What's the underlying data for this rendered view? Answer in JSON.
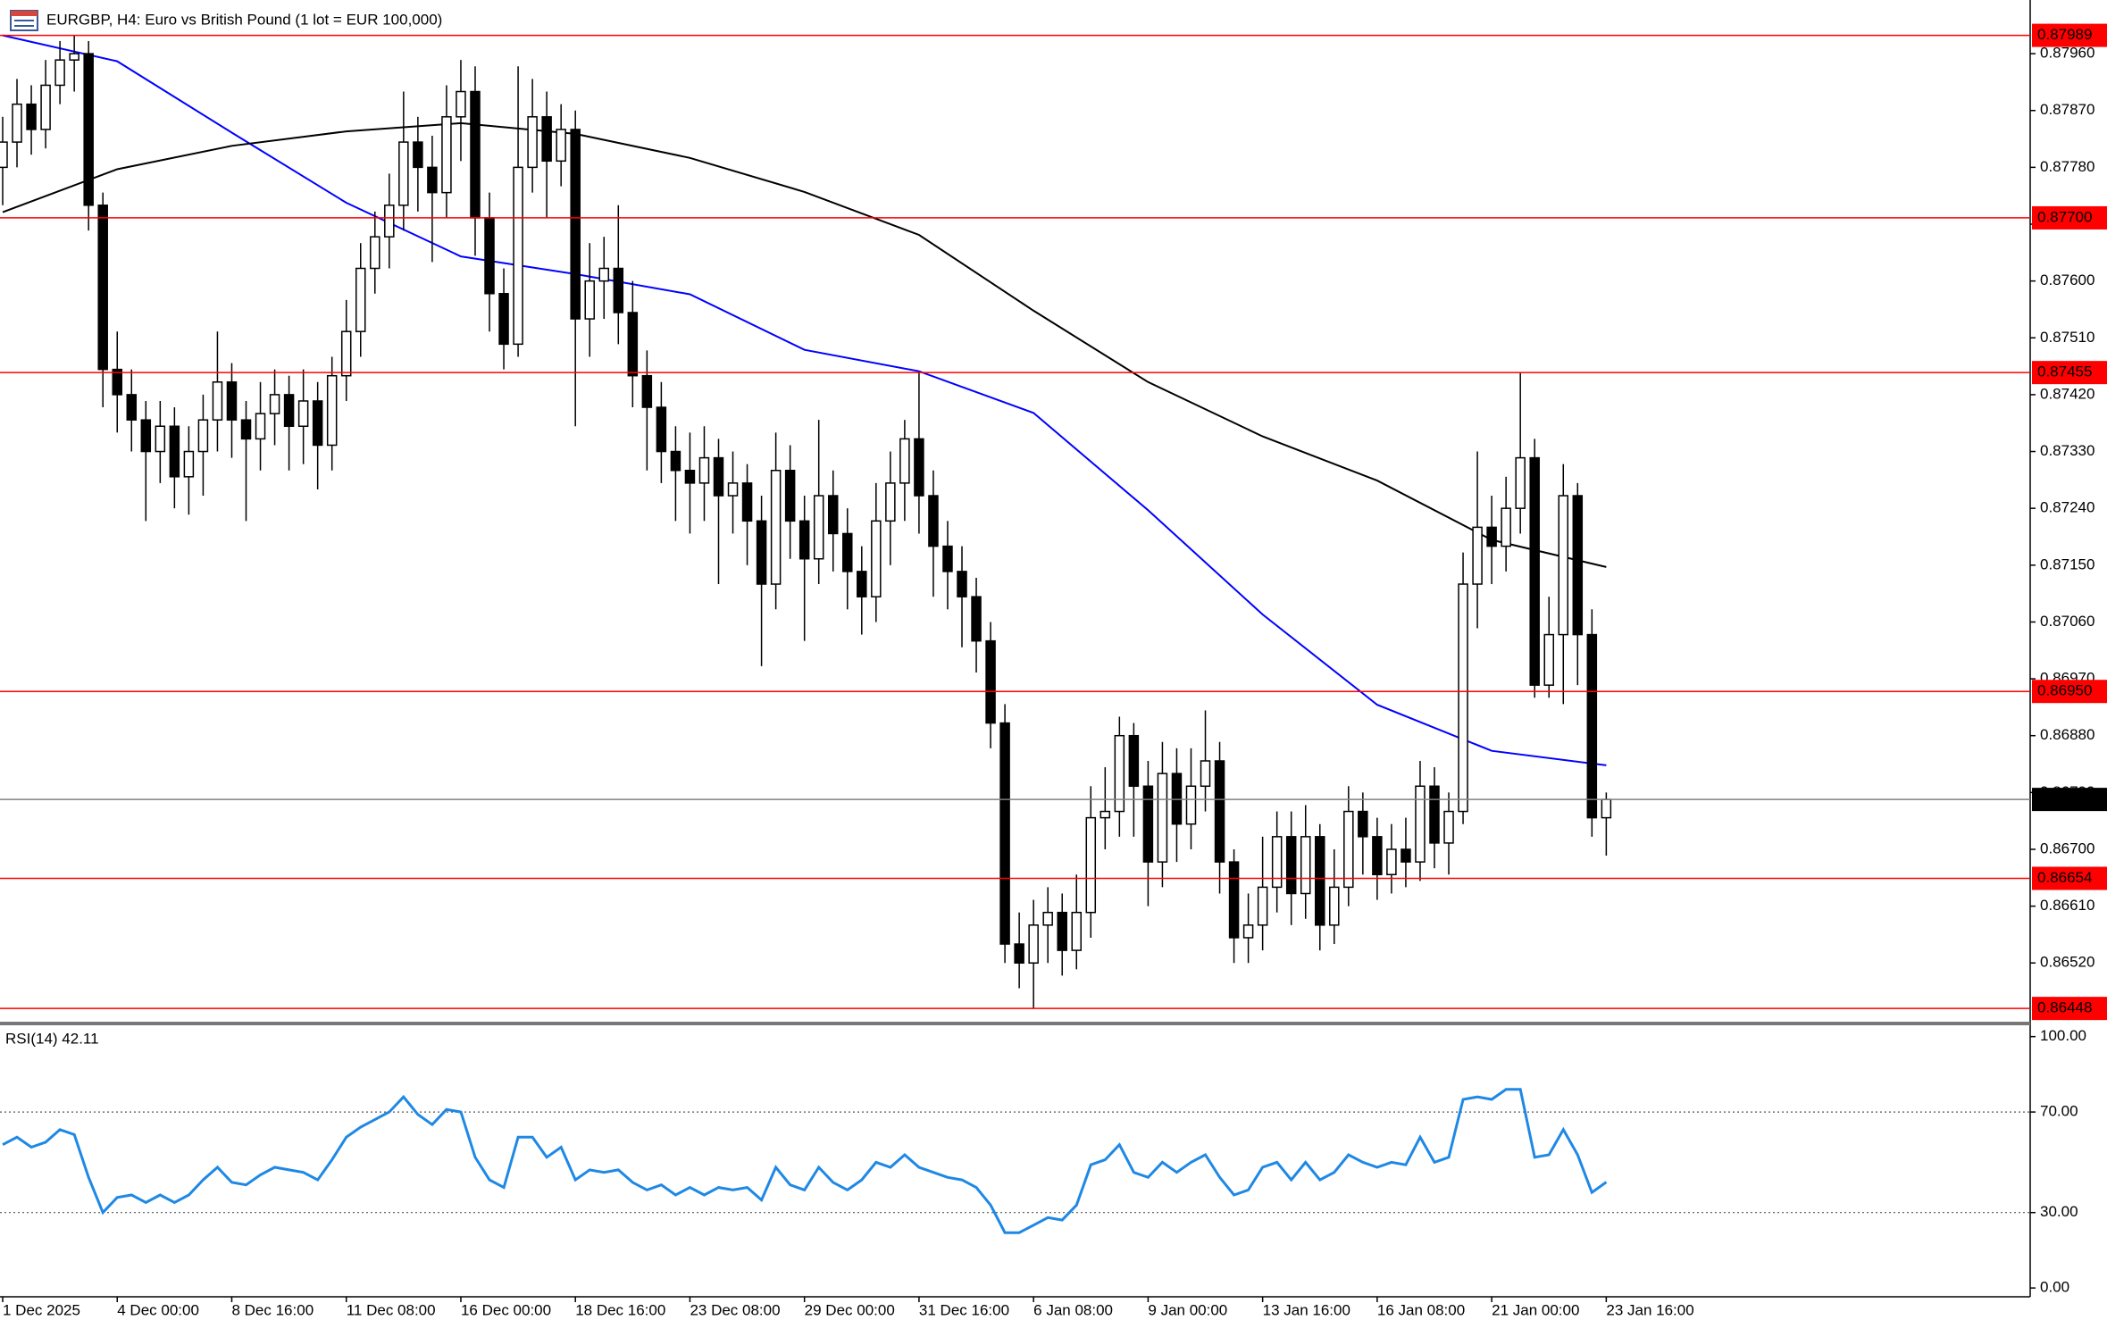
{
  "chart_data": [
    {
      "type": "candlestick",
      "title": "EURGBP, H4:  Euro vs British Pound (1 lot = EUR 100,000)",
      "categories": [
        "1 Dec 2025",
        null,
        null,
        null,
        null,
        null,
        null,
        null,
        "4 Dec 00:00",
        null,
        null,
        null,
        null,
        null,
        null,
        null,
        "8 Dec 16:00",
        null,
        null,
        null,
        null,
        null,
        null,
        null,
        "11 Dec 08:00",
        null,
        null,
        null,
        null,
        null,
        null,
        null,
        "16 Dec 00:00",
        null,
        null,
        null,
        null,
        null,
        null,
        null,
        "18 Dec 16:00",
        null,
        null,
        null,
        null,
        null,
        null,
        null,
        "23 Dec 08:00",
        null,
        null,
        null,
        null,
        null,
        null,
        null,
        "29 Dec 00:00",
        null,
        null,
        null,
        null,
        null,
        null,
        null,
        "31 Dec 16:00",
        null,
        null,
        null,
        null,
        null,
        null,
        null,
        "6 Jan 08:00",
        null,
        null,
        null,
        null,
        null,
        null,
        null,
        "9 Jan 00:00",
        null,
        null,
        null,
        null,
        null,
        null,
        null,
        "13 Jan 16:00",
        null,
        null,
        null,
        null,
        null,
        null,
        null,
        "16 Jan 08:00",
        null,
        null,
        null,
        null,
        null,
        null,
        null,
        "21 Jan 00:00",
        null,
        null,
        null,
        null,
        null,
        null,
        null,
        "23 Jan 16:00"
      ],
      "open": [
        0.8778,
        0.8782,
        0.8788,
        0.8784,
        0.8791,
        0.8795,
        0.8796,
        0.8772,
        0.8746,
        0.8742,
        0.8738,
        0.8733,
        0.8737,
        0.8729,
        0.8733,
        0.8738,
        0.8744,
        0.8738,
        0.8735,
        0.8739,
        0.8742,
        0.8737,
        0.8741,
        0.8734,
        0.8745,
        0.8752,
        0.8762,
        0.8767,
        0.8772,
        0.8782,
        0.8778,
        0.8774,
        0.8786,
        0.879,
        0.877,
        0.8758,
        0.875,
        0.8778,
        0.8786,
        0.8779,
        0.8784,
        0.8754,
        0.876,
        0.8762,
        0.8755,
        0.8745,
        0.874,
        0.8733,
        0.873,
        0.8728,
        0.8732,
        0.8726,
        0.8728,
        0.8722,
        0.8712,
        0.873,
        0.8722,
        0.8716,
        0.8726,
        0.872,
        0.8714,
        0.871,
        0.8722,
        0.8728,
        0.8735,
        0.8726,
        0.8718,
        0.8714,
        0.871,
        0.8703,
        0.869,
        0.8655,
        0.8652,
        0.8658,
        0.866,
        0.8654,
        0.866,
        0.8675,
        0.8676,
        0.8688,
        0.868,
        0.8668,
        0.8682,
        0.8674,
        0.868,
        0.8684,
        0.8668,
        0.8656,
        0.8658,
        0.8664,
        0.8672,
        0.8663,
        0.8672,
        0.8658,
        0.8664,
        0.8676,
        0.8672,
        0.8666,
        0.867,
        0.8668,
        0.868,
        0.8671,
        0.8676,
        0.8712,
        0.8721,
        0.8718,
        0.8724,
        0.8732,
        0.8696,
        0.8704,
        0.8726,
        0.8704,
        0.8675
      ],
      "high": [
        0.8786,
        0.8792,
        0.8791,
        0.8795,
        0.8798,
        0.87989,
        0.8798,
        0.8774,
        0.8752,
        0.8746,
        0.8741,
        0.8741,
        0.874,
        0.8737,
        0.8742,
        0.8752,
        0.8747,
        0.8741,
        0.8744,
        0.8746,
        0.8745,
        0.8746,
        0.8744,
        0.8748,
        0.8757,
        0.8766,
        0.8771,
        0.8777,
        0.879,
        0.8786,
        0.8783,
        0.8791,
        0.8795,
        0.8794,
        0.8774,
        0.8762,
        0.8794,
        0.8792,
        0.879,
        0.8788,
        0.8787,
        0.8766,
        0.8767,
        0.8772,
        0.876,
        0.8749,
        0.8744,
        0.8737,
        0.8736,
        0.8737,
        0.8735,
        0.8733,
        0.8731,
        0.8726,
        0.8736,
        0.8734,
        0.8726,
        0.8738,
        0.873,
        0.8724,
        0.8718,
        0.8728,
        0.8733,
        0.8738,
        0.87455,
        0.873,
        0.8722,
        0.8718,
        0.8713,
        0.8706,
        0.8693,
        0.866,
        0.8662,
        0.8664,
        0.8663,
        0.8666,
        0.868,
        0.8683,
        0.8691,
        0.869,
        0.8684,
        0.8687,
        0.8686,
        0.8686,
        0.8692,
        0.8687,
        0.867,
        0.8663,
        0.8672,
        0.8676,
        0.8676,
        0.8677,
        0.8674,
        0.867,
        0.868,
        0.8679,
        0.8675,
        0.8674,
        0.8675,
        0.8684,
        0.8683,
        0.8679,
        0.8717,
        0.8733,
        0.8726,
        0.8729,
        0.87455,
        0.8735,
        0.871,
        0.8731,
        0.8728,
        0.8708,
        0.8679
      ],
      "low": [
        0.8772,
        0.8778,
        0.878,
        0.8781,
        0.8788,
        0.879,
        0.8768,
        0.874,
        0.8736,
        0.8733,
        0.8722,
        0.8728,
        0.8724,
        0.8723,
        0.8726,
        0.8733,
        0.8732,
        0.8722,
        0.873,
        0.8734,
        0.873,
        0.8731,
        0.8727,
        0.873,
        0.8741,
        0.8748,
        0.8758,
        0.8762,
        0.8768,
        0.8771,
        0.8763,
        0.877,
        0.8779,
        0.8764,
        0.8752,
        0.8746,
        0.8748,
        0.8774,
        0.877,
        0.8775,
        0.8737,
        0.8748,
        0.8754,
        0.875,
        0.874,
        0.873,
        0.8728,
        0.8722,
        0.872,
        0.8722,
        0.8712,
        0.872,
        0.8715,
        0.8699,
        0.8708,
        0.8716,
        0.8703,
        0.8712,
        0.8714,
        0.8708,
        0.8704,
        0.8706,
        0.8715,
        0.8722,
        0.872,
        0.871,
        0.8708,
        0.8702,
        0.8698,
        0.8686,
        0.8652,
        0.8648,
        0.86448,
        0.8652,
        0.865,
        0.8651,
        0.8656,
        0.867,
        0.8672,
        0.8672,
        0.8661,
        0.8664,
        0.8668,
        0.867,
        0.8676,
        0.8663,
        0.8652,
        0.8652,
        0.8654,
        0.866,
        0.8658,
        0.8659,
        0.8654,
        0.8655,
        0.8661,
        0.8666,
        0.8662,
        0.8663,
        0.8664,
        0.8665,
        0.8667,
        0.8666,
        0.8674,
        0.8705,
        0.8712,
        0.8714,
        0.872,
        0.8694,
        0.8694,
        0.8693,
        0.8696,
        0.8672,
        0.8669
      ],
      "close": [
        0.8782,
        0.8788,
        0.8784,
        0.8791,
        0.8795,
        0.8796,
        0.8772,
        0.8746,
        0.8742,
        0.8738,
        0.8733,
        0.8737,
        0.8729,
        0.8733,
        0.8738,
        0.8744,
        0.8738,
        0.8735,
        0.8739,
        0.8742,
        0.8737,
        0.8741,
        0.8734,
        0.8745,
        0.8752,
        0.8762,
        0.8767,
        0.8772,
        0.8782,
        0.8778,
        0.8774,
        0.8786,
        0.879,
        0.877,
        0.8758,
        0.875,
        0.8778,
        0.8786,
        0.8779,
        0.8784,
        0.8754,
        0.876,
        0.8762,
        0.8755,
        0.8745,
        0.874,
        0.8733,
        0.873,
        0.8728,
        0.8732,
        0.8726,
        0.8728,
        0.8722,
        0.8712,
        0.873,
        0.8722,
        0.8716,
        0.8726,
        0.872,
        0.8714,
        0.871,
        0.8722,
        0.8728,
        0.8735,
        0.8726,
        0.8718,
        0.8714,
        0.871,
        0.8703,
        0.869,
        0.8655,
        0.8652,
        0.8658,
        0.866,
        0.8654,
        0.866,
        0.8675,
        0.8676,
        0.8688,
        0.868,
        0.8668,
        0.8682,
        0.8674,
        0.868,
        0.8684,
        0.8668,
        0.8656,
        0.8658,
        0.8664,
        0.8672,
        0.8663,
        0.8672,
        0.8658,
        0.8664,
        0.8676,
        0.8672,
        0.8666,
        0.867,
        0.8668,
        0.868,
        0.8671,
        0.8676,
        0.8712,
        0.8721,
        0.8718,
        0.8724,
        0.8732,
        0.8696,
        0.8704,
        0.8726,
        0.8704,
        0.8675,
        0.86779
      ],
      "up_color": "#ffffff",
      "down_color": "#000000",
      "wick_color": "#000000",
      "moving_averages": [
        {
          "color": "#0000ff",
          "x": [
            0,
            8,
            16,
            24,
            32,
            40,
            48,
            56,
            64,
            72,
            80,
            88,
            96,
            104,
            112
          ],
          "values": [
            0.87989,
            0.87948,
            0.87835,
            0.87724,
            0.87639,
            0.87611,
            0.87579,
            0.87491,
            0.87457,
            0.87391,
            0.87237,
            0.87072,
            0.86929,
            0.86856,
            0.86833
          ]
        },
        {
          "color": "#000000",
          "x": [
            0,
            8,
            16,
            24,
            32,
            40,
            48,
            56,
            64,
            72,
            80,
            88,
            96,
            104,
            112
          ],
          "values": [
            0.87709,
            0.87777,
            0.87814,
            0.87837,
            0.8785,
            0.87833,
            0.87795,
            0.87741,
            0.87673,
            0.87553,
            0.8744,
            0.87354,
            0.87284,
            0.8719,
            0.87147
          ]
        }
      ],
      "ylim": [
        0.86427,
        0.88045
      ],
      "yticks": [
        {
          "value": 0.8796,
          "label": "0.87960"
        },
        {
          "value": 0.8787,
          "label": "0.87870"
        },
        {
          "value": 0.8778,
          "label": "0.87780"
        },
        {
          "value": 0.8769,
          "label": "0.87690"
        },
        {
          "value": 0.876,
          "label": "0.87600"
        },
        {
          "value": 0.8751,
          "label": "0.87510"
        },
        {
          "value": 0.8742,
          "label": "0.87420"
        },
        {
          "value": 0.8733,
          "label": "0.87330"
        },
        {
          "value": 0.8724,
          "label": "0.87240"
        },
        {
          "value": 0.8715,
          "label": "0.87150"
        },
        {
          "value": 0.8706,
          "label": "0.87060"
        },
        {
          "value": 0.8697,
          "label": "0.86970"
        },
        {
          "value": 0.8688,
          "label": "0.86880"
        },
        {
          "value": 0.8679,
          "label": "0.86790"
        },
        {
          "value": 0.867,
          "label": "0.86700"
        },
        {
          "value": 0.8661,
          "label": "0.86610"
        },
        {
          "value": 0.8652,
          "label": "0.86520"
        }
      ],
      "levels": [
        0.87989,
        {
          "value": 0.877,
          "label": "0.87700"
        },
        0.87455,
        {
          "value": 0.8695,
          "label": "0.86950"
        },
        0.86654,
        0.86448
      ],
      "level_color": "#ff0000",
      "current_price": 0.86779,
      "current_color": "#808080"
    },
    {
      "type": "line",
      "title": "RSI(14) 42.11",
      "color": "#1e88e5",
      "values": [
        57,
        60,
        56,
        58,
        63,
        61,
        44,
        30,
        36,
        37,
        34,
        37,
        34,
        37,
        43,
        48,
        42,
        41,
        45,
        48,
        47,
        46,
        43,
        51,
        60,
        64,
        67,
        70,
        76,
        69,
        65,
        71,
        70,
        52,
        43,
        40,
        60,
        60,
        52,
        56,
        43,
        47,
        46,
        47,
        42,
        39,
        41,
        37,
        40,
        37,
        40,
        39,
        40,
        35,
        48,
        41,
        39,
        48,
        42,
        39,
        43,
        50,
        48,
        53,
        48,
        46,
        44,
        43,
        40,
        33,
        22,
        22,
        25,
        28,
        27,
        33,
        49,
        51,
        57,
        46,
        44,
        50,
        46,
        50,
        53,
        44,
        37,
        39,
        48,
        50,
        43,
        50,
        43,
        46,
        53,
        50,
        48,
        50,
        49,
        60,
        50,
        52,
        75,
        76,
        75,
        79,
        79,
        52,
        53,
        63,
        53,
        38,
        42.11
      ],
      "ylim": [
        -3.5,
        104.5
      ],
      "yticks": [
        {
          "value": 100,
          "label": "100.00"
        },
        {
          "value": 70,
          "label": "70.00"
        },
        {
          "value": 30,
          "label": "30.00"
        },
        {
          "value": 0,
          "label": "0.00"
        }
      ],
      "levels": [
        70,
        30
      ],
      "level_style": "dotted"
    }
  ]
}
